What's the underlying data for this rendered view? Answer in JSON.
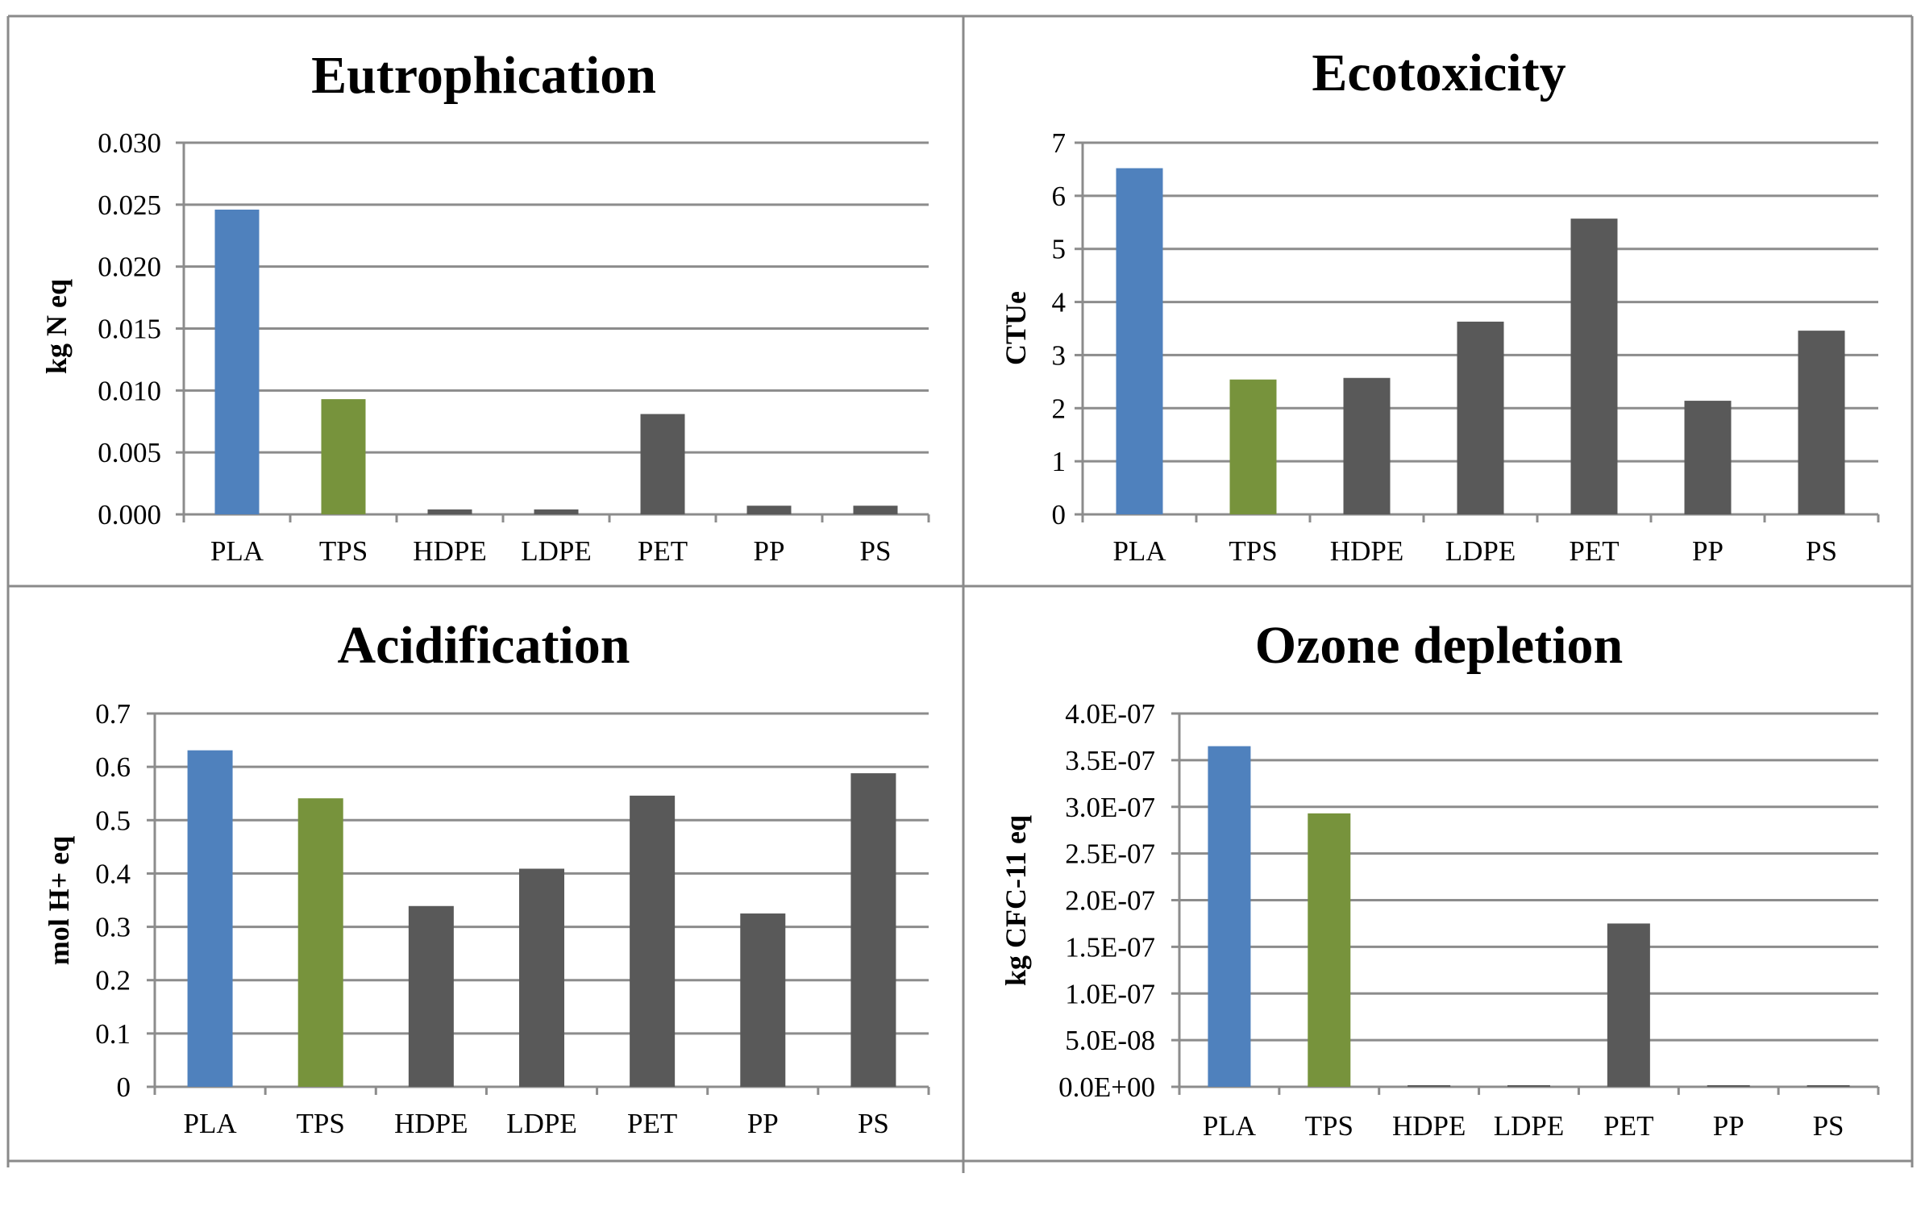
{
  "colors": {
    "PLA": "#4f81bd",
    "TPS": "#77933c",
    "other": "#595959"
  },
  "chart_data": [
    {
      "type": "bar",
      "title": "Eutrophication",
      "ylabel": "kg N eq",
      "categories": [
        "PLA",
        "TPS",
        "HDPE",
        "LDPE",
        "PET",
        "PP",
        "PS"
      ],
      "values": [
        0.0246,
        0.0093,
        0.0004,
        0.0004,
        0.0081,
        0.0007,
        0.0007
      ],
      "ylim": [
        0,
        0.03
      ],
      "yticks": [
        "0.000",
        "0.005",
        "0.010",
        "0.015",
        "0.020",
        "0.025",
        "0.030"
      ],
      "grid": true
    },
    {
      "type": "bar",
      "title": "Ecotoxicity",
      "ylabel": "CTUe",
      "categories": [
        "PLA",
        "TPS",
        "HDPE",
        "LDPE",
        "PET",
        "PP",
        "PS"
      ],
      "values": [
        6.52,
        2.54,
        2.57,
        3.63,
        5.57,
        2.14,
        3.46
      ],
      "ylim": [
        0,
        7
      ],
      "yticks": [
        "0",
        "1",
        "2",
        "3",
        "4",
        "5",
        "6",
        "7"
      ],
      "grid": true
    },
    {
      "type": "bar",
      "title": "Acidification",
      "ylabel": "mol H+ eq",
      "categories": [
        "PLA",
        "TPS",
        "HDPE",
        "LDPE",
        "PET",
        "PP",
        "PS"
      ],
      "values": [
        0.631,
        0.541,
        0.339,
        0.409,
        0.546,
        0.325,
        0.588
      ],
      "ylim": [
        0,
        0.7
      ],
      "yticks": [
        "0",
        "0.1",
        "0.2",
        "0.3",
        "0.4",
        "0.5",
        "0.6",
        "0.7"
      ],
      "grid": true
    },
    {
      "type": "bar",
      "title": "Ozone depletion",
      "ylabel": "kg CFC-11 eq",
      "categories": [
        "PLA",
        "TPS",
        "HDPE",
        "LDPE",
        "PET",
        "PP",
        "PS"
      ],
      "values": [
        3.65e-07,
        2.93e-07,
        5e-10,
        5e-10,
        1.75e-07,
        5e-10,
        1e-09
      ],
      "ylim": [
        0,
        4e-07
      ],
      "yticks": [
        "0.0E+00",
        "5.0E-08",
        "1.0E-07",
        "1.5E-07",
        "2.0E-07",
        "2.5E-07",
        "3.0E-07",
        "3.5E-07",
        "4.0E-07"
      ],
      "grid": true
    }
  ]
}
